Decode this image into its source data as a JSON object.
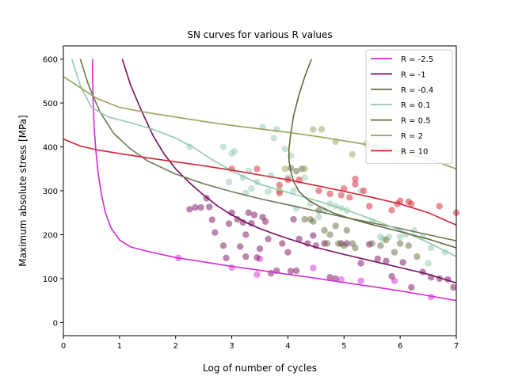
{
  "chart_data": {
    "type": "scatter",
    "title": "SN curves for various R values",
    "xlabel": "Log of number of cycles",
    "ylabel": "Maximum absolute stress [MPa]",
    "xlim": [
      0,
      7
    ],
    "ylim": [
      -30,
      630
    ],
    "x_ticks": [
      0,
      1,
      2,
      3,
      4,
      5,
      6,
      7
    ],
    "y_ticks": [
      0,
      100,
      200,
      300,
      400,
      500,
      600
    ],
    "grid": false,
    "legend_position": "top-right",
    "series": [
      {
        "name": "R = -2.5",
        "color": "#d62ad4",
        "curve": [
          [
            0.52,
            600
          ],
          [
            0.52,
            560
          ],
          [
            0.53,
            500
          ],
          [
            0.55,
            440
          ],
          [
            0.58,
            390
          ],
          [
            0.62,
            340
          ],
          [
            0.68,
            290
          ],
          [
            0.75,
            250
          ],
          [
            0.85,
            215
          ],
          [
            1.0,
            188
          ],
          [
            1.2,
            172
          ],
          [
            1.5,
            162
          ],
          [
            2.0,
            148
          ],
          [
            2.5,
            138
          ],
          [
            3.0,
            128
          ],
          [
            3.5,
            119
          ],
          [
            4.0,
            110
          ],
          [
            4.5,
            101
          ],
          [
            5.0,
            91
          ],
          [
            5.5,
            82
          ],
          [
            6.0,
            72
          ],
          [
            6.5,
            61
          ],
          [
            7.0,
            50
          ]
        ],
        "points": [
          [
            2.05,
            147
          ],
          [
            3.0,
            125
          ],
          [
            3.45,
            109
          ],
          [
            3.5,
            145
          ],
          [
            4.45,
            124
          ],
          [
            4.95,
            98
          ],
          [
            5.3,
            95
          ],
          [
            5.9,
            95
          ],
          [
            6.55,
            58
          ]
        ]
      },
      {
        "name": "R = -1",
        "color": "#7a0c5e",
        "curve": [
          [
            1.05,
            600
          ],
          [
            1.2,
            540
          ],
          [
            1.4,
            480
          ],
          [
            1.6,
            425
          ],
          [
            1.8,
            383
          ],
          [
            2.0,
            350
          ],
          [
            2.25,
            318
          ],
          [
            2.5,
            290
          ],
          [
            2.75,
            265
          ],
          [
            3.0,
            245
          ],
          [
            3.25,
            228
          ],
          [
            3.5,
            214
          ],
          [
            3.75,
            202
          ],
          [
            4.0,
            191
          ],
          [
            4.5,
            171
          ],
          [
            5.0,
            155
          ],
          [
            5.5,
            140
          ],
          [
            6.0,
            125
          ],
          [
            6.5,
            110
          ],
          [
            7.0,
            90
          ]
        ],
        "points": [
          [
            2.25,
            258
          ],
          [
            2.35,
            262
          ],
          [
            2.45,
            262
          ],
          [
            2.55,
            283
          ],
          [
            2.6,
            263
          ],
          [
            2.65,
            234
          ],
          [
            2.7,
            205
          ],
          [
            2.85,
            175
          ],
          [
            2.9,
            147
          ],
          [
            2.95,
            225
          ],
          [
            3.0,
            250
          ],
          [
            3.1,
            235
          ],
          [
            3.15,
            173
          ],
          [
            3.2,
            228
          ],
          [
            3.25,
            150
          ],
          [
            3.25,
            200
          ],
          [
            3.3,
            250
          ],
          [
            3.35,
            226
          ],
          [
            3.4,
            245
          ],
          [
            3.45,
            148
          ],
          [
            3.5,
            168
          ],
          [
            3.55,
            240
          ],
          [
            3.6,
            230
          ],
          [
            3.65,
            190
          ],
          [
            3.7,
            112
          ],
          [
            3.8,
            118
          ],
          [
            3.9,
            180
          ],
          [
            4.0,
            160
          ],
          [
            4.05,
            117
          ],
          [
            4.1,
            235
          ],
          [
            4.15,
            118
          ],
          [
            4.2,
            190
          ],
          [
            4.35,
            180
          ],
          [
            4.45,
            198
          ],
          [
            4.5,
            175
          ],
          [
            4.65,
            180
          ],
          [
            4.75,
            103
          ],
          [
            4.85,
            100
          ],
          [
            4.95,
            180
          ],
          [
            5.05,
            180
          ],
          [
            5.3,
            135
          ],
          [
            5.45,
            178
          ],
          [
            5.6,
            145
          ],
          [
            5.75,
            140
          ],
          [
            5.85,
            105
          ],
          [
            6.05,
            137
          ],
          [
            6.2,
            80
          ],
          [
            6.4,
            115
          ],
          [
            6.55,
            103
          ],
          [
            6.7,
            100
          ],
          [
            6.85,
            98
          ],
          [
            6.95,
            80
          ]
        ]
      },
      {
        "name": "R = -0.4",
        "color": "#6b7a52",
        "curve": [
          [
            0.3,
            600
          ],
          [
            0.45,
            540
          ],
          [
            0.65,
            480
          ],
          [
            0.9,
            430
          ],
          [
            1.2,
            395
          ],
          [
            1.5,
            368
          ],
          [
            2.0,
            338
          ],
          [
            2.5,
            316
          ],
          [
            3.0,
            298
          ],
          [
            3.5,
            282
          ],
          [
            4.0,
            268
          ],
          [
            4.5,
            254
          ],
          [
            5.0,
            240
          ],
          [
            5.5,
            227
          ],
          [
            6.0,
            214
          ],
          [
            6.5,
            200
          ],
          [
            7.0,
            186
          ]
        ],
        "points": []
      },
      {
        "name": "R = 0.1",
        "color": "#93c9b0",
        "curve": [
          [
            0.15,
            600
          ],
          [
            0.3,
            540
          ],
          [
            0.5,
            490
          ],
          [
            0.8,
            468
          ],
          [
            1.2,
            455
          ],
          [
            1.6,
            440
          ],
          [
            2.0,
            420
          ],
          [
            2.3,
            400
          ],
          [
            2.6,
            375
          ],
          [
            3.0,
            345
          ],
          [
            3.5,
            315
          ],
          [
            4.0,
            296
          ],
          [
            4.5,
            278
          ],
          [
            5.0,
            258
          ],
          [
            5.5,
            235
          ],
          [
            6.0,
            210
          ],
          [
            6.5,
            182
          ],
          [
            7.0,
            150
          ]
        ],
        "points": [
          [
            2.25,
            400
          ],
          [
            2.85,
            400
          ],
          [
            2.95,
            320
          ],
          [
            3.0,
            385
          ],
          [
            3.05,
            390
          ],
          [
            3.2,
            330
          ],
          [
            3.25,
            295
          ],
          [
            3.3,
            345
          ],
          [
            3.35,
            305
          ],
          [
            3.45,
            320
          ],
          [
            3.55,
            445
          ],
          [
            3.65,
            298
          ],
          [
            3.7,
            335
          ],
          [
            3.75,
            420
          ],
          [
            3.8,
            440
          ],
          [
            3.95,
            395
          ],
          [
            4.0,
            330
          ],
          [
            4.05,
            380
          ],
          [
            4.1,
            300
          ],
          [
            4.15,
            260
          ],
          [
            4.3,
            330
          ],
          [
            4.4,
            270
          ],
          [
            4.55,
            240
          ],
          [
            4.65,
            255
          ],
          [
            4.75,
            270
          ],
          [
            4.85,
            265
          ],
          [
            4.95,
            260
          ],
          [
            5.05,
            255
          ],
          [
            5.3,
            300
          ],
          [
            5.5,
            230
          ],
          [
            5.65,
            195
          ],
          [
            5.7,
            190
          ],
          [
            5.8,
            195
          ],
          [
            6.0,
            195
          ],
          [
            6.1,
            200
          ],
          [
            6.25,
            210
          ],
          [
            6.4,
            195
          ],
          [
            6.5,
            135
          ],
          [
            6.55,
            170
          ],
          [
            6.8,
            160
          ]
        ]
      },
      {
        "name": "R = 0.5",
        "color": "#636b40",
        "curve": [
          [
            4.42,
            600
          ],
          [
            4.3,
            560
          ],
          [
            4.2,
            520
          ],
          [
            4.1,
            470
          ],
          [
            4.05,
            430
          ],
          [
            4.02,
            395
          ],
          [
            4.02,
            370
          ],
          [
            4.05,
            345
          ],
          [
            4.1,
            322
          ],
          [
            4.2,
            298
          ],
          [
            4.35,
            280
          ],
          [
            4.55,
            265
          ],
          [
            4.8,
            250
          ],
          [
            5.1,
            237
          ],
          [
            5.5,
            223
          ],
          [
            6.0,
            207
          ],
          [
            6.5,
            190
          ],
          [
            7.0,
            170
          ]
        ],
        "points": [
          [
            4.05,
            352
          ],
          [
            4.15,
            345
          ],
          [
            4.25,
            350
          ],
          [
            4.3,
            235
          ],
          [
            4.4,
            235
          ],
          [
            4.45,
            230
          ],
          [
            4.55,
            255
          ],
          [
            4.65,
            210
          ],
          [
            4.7,
            180
          ],
          [
            4.75,
            200
          ],
          [
            4.85,
            220
          ],
          [
            4.9,
            180
          ],
          [
            5.0,
            175
          ],
          [
            5.05,
            210
          ],
          [
            5.15,
            180
          ],
          [
            5.2,
            170
          ],
          [
            5.5,
            180
          ],
          [
            5.65,
            175
          ],
          [
            5.75,
            188
          ],
          [
            5.9,
            160
          ],
          [
            6.0,
            180
          ],
          [
            6.15,
            175
          ],
          [
            6.3,
            150
          ]
        ]
      },
      {
        "name": "R = 2",
        "color": "#9aa15a",
        "curve": [
          [
            0.0,
            560
          ],
          [
            0.3,
            535
          ],
          [
            0.6,
            510
          ],
          [
            1.0,
            490
          ],
          [
            1.5,
            478
          ],
          [
            2.0,
            468
          ],
          [
            2.5,
            458
          ],
          [
            3.0,
            449
          ],
          [
            3.5,
            441
          ],
          [
            4.0,
            433
          ],
          [
            4.5,
            424
          ],
          [
            5.0,
            414
          ],
          [
            5.5,
            403
          ],
          [
            6.0,
            390
          ],
          [
            6.5,
            373
          ],
          [
            7.0,
            350
          ]
        ],
        "points": [
          [
            3.85,
            300
          ],
          [
            3.95,
            350
          ],
          [
            4.3,
            350
          ],
          [
            4.45,
            440
          ],
          [
            4.6,
            440
          ],
          [
            4.85,
            412
          ],
          [
            5.15,
            383
          ],
          [
            5.4,
            408
          ],
          [
            5.55,
            400
          ],
          [
            6.05,
            382
          ]
        ]
      },
      {
        "name": "R = 10",
        "color": "#d42234",
        "curve": [
          [
            0.0,
            418
          ],
          [
            0.3,
            402
          ],
          [
            0.6,
            393
          ],
          [
            1.0,
            385
          ],
          [
            1.5,
            375
          ],
          [
            2.0,
            366
          ],
          [
            2.5,
            357
          ],
          [
            3.0,
            347
          ],
          [
            3.5,
            336
          ],
          [
            4.0,
            325
          ],
          [
            4.5,
            312
          ],
          [
            5.0,
            299
          ],
          [
            5.5,
            285
          ],
          [
            6.0,
            270
          ],
          [
            6.5,
            250
          ],
          [
            7.0,
            222
          ]
        ],
        "points": [
          [
            3.0,
            350
          ],
          [
            3.45,
            350
          ],
          [
            3.85,
            313
          ],
          [
            3.85,
            295
          ],
          [
            4.0,
            325
          ],
          [
            4.2,
            325
          ],
          [
            4.55,
            300
          ],
          [
            4.75,
            293
          ],
          [
            4.95,
            290
          ],
          [
            5.0,
            305
          ],
          [
            5.1,
            285
          ],
          [
            5.2,
            315
          ],
          [
            5.2,
            327
          ],
          [
            5.35,
            300
          ],
          [
            5.45,
            265
          ],
          [
            5.85,
            256
          ],
          [
            5.95,
            270
          ],
          [
            6.0,
            277
          ],
          [
            6.15,
            275
          ],
          [
            6.2,
            270
          ],
          [
            6.7,
            265
          ],
          [
            7.0,
            250
          ]
        ]
      }
    ]
  }
}
